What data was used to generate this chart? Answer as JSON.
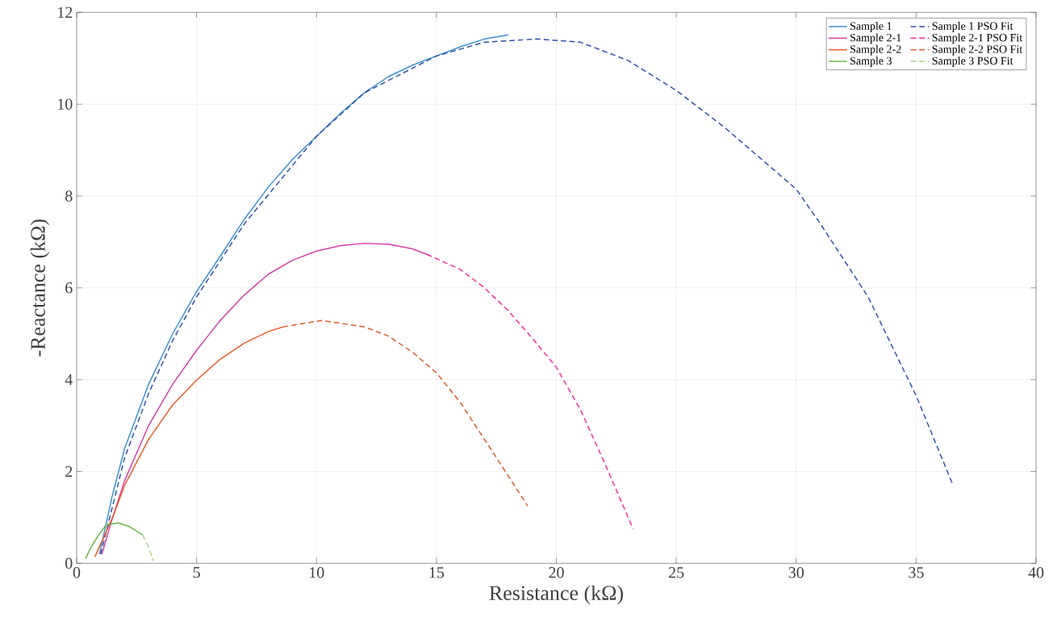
{
  "chart_data": {
    "type": "line",
    "xlabel": "Resistance (kΩ)",
    "ylabel": "-Reactance (kΩ)",
    "xlim": [
      0,
      40
    ],
    "ylim": [
      0,
      12
    ],
    "xticks": [
      0,
      5,
      10,
      15,
      20,
      25,
      30,
      35,
      40
    ],
    "yticks": [
      0,
      2,
      4,
      6,
      8,
      10,
      12
    ],
    "grid": true,
    "legend": "top right",
    "marker": "none",
    "series": [
      {
        "name": "Sample 1",
        "color": "#3a8fd0",
        "line_style": "solid",
        "x": [
          0.95,
          1.5,
          2,
          3,
          4,
          5,
          6,
          7,
          8,
          9,
          10,
          11,
          12,
          13,
          14,
          15,
          16,
          17,
          18
        ],
        "values": [
          0.2,
          1.5,
          2.5,
          3.9,
          5.0,
          5.92,
          6.7,
          7.5,
          8.2,
          8.8,
          9.3,
          9.8,
          10.25,
          10.6,
          10.85,
          11.05,
          11.25,
          11.42,
          11.51
        ]
      },
      {
        "name": "Sample 1 PSO Fit",
        "color": "#2f4fa8",
        "line_style": "dashed",
        "x": [
          1.0,
          2,
          3,
          4,
          5,
          7,
          10,
          12,
          15,
          17,
          19.2,
          21,
          23,
          25,
          27,
          29,
          30,
          31,
          33,
          35,
          36.5
        ],
        "values": [
          0.2,
          2.3,
          3.7,
          4.85,
          5.8,
          7.4,
          9.3,
          10.25,
          11.05,
          11.35,
          11.42,
          11.35,
          10.95,
          10.3,
          9.5,
          8.6,
          8.15,
          7.4,
          5.8,
          3.65,
          1.75
        ]
      },
      {
        "name": "Sample 2-1",
        "color": "#d63fa6",
        "line_style": "solid",
        "x": [
          1.05,
          1.5,
          2,
          3,
          4,
          5,
          6,
          7,
          8,
          9,
          10,
          11,
          12,
          13,
          14,
          14.6
        ],
        "values": [
          0.2,
          1.0,
          1.8,
          3.0,
          3.9,
          4.64,
          5.3,
          5.85,
          6.3,
          6.6,
          6.8,
          6.92,
          6.97,
          6.95,
          6.85,
          6.73
        ]
      },
      {
        "name": "Sample 2-1 PSO Fit",
        "color": "#ff2aa0",
        "line_style": "dashed",
        "x": [
          14.6,
          16,
          17,
          18,
          19,
          20,
          21,
          22,
          23.2
        ],
        "values": [
          6.73,
          6.4,
          6.0,
          5.5,
          4.9,
          4.27,
          3.35,
          2.2,
          0.75
        ]
      },
      {
        "name": "Sample 2-2",
        "color": "#ee5a24",
        "line_style": "solid",
        "x": [
          0.76,
          1.5,
          2,
          3,
          4,
          5,
          6,
          7,
          8,
          8.6
        ],
        "values": [
          0.14,
          1.0,
          1.7,
          2.7,
          3.45,
          3.99,
          4.45,
          4.8,
          5.05,
          5.15
        ]
      },
      {
        "name": "Sample 2-2 PSO Fit",
        "color": "#e05a2a",
        "line_style": "dashed",
        "x": [
          8.6,
          10.2,
          12,
          13,
          14,
          15,
          16,
          17,
          18,
          18.8
        ],
        "values": [
          5.15,
          5.29,
          5.15,
          4.95,
          4.6,
          4.15,
          3.5,
          2.7,
          1.9,
          1.25
        ]
      },
      {
        "name": "Sample 3",
        "color": "#6ab845",
        "line_style": "solid",
        "x": [
          0.37,
          0.6,
          0.9,
          1.23,
          1.74,
          2.2,
          2.75
        ],
        "values": [
          0.1,
          0.35,
          0.6,
          0.84,
          0.88,
          0.8,
          0.62
        ]
      },
      {
        "name": "Sample 3 PSO Fit",
        "color": "#a6d48a",
        "line_style": "dashed",
        "x": [
          2.75,
          3.0,
          3.2
        ],
        "values": [
          0.62,
          0.35,
          0.05
        ]
      }
    ]
  }
}
